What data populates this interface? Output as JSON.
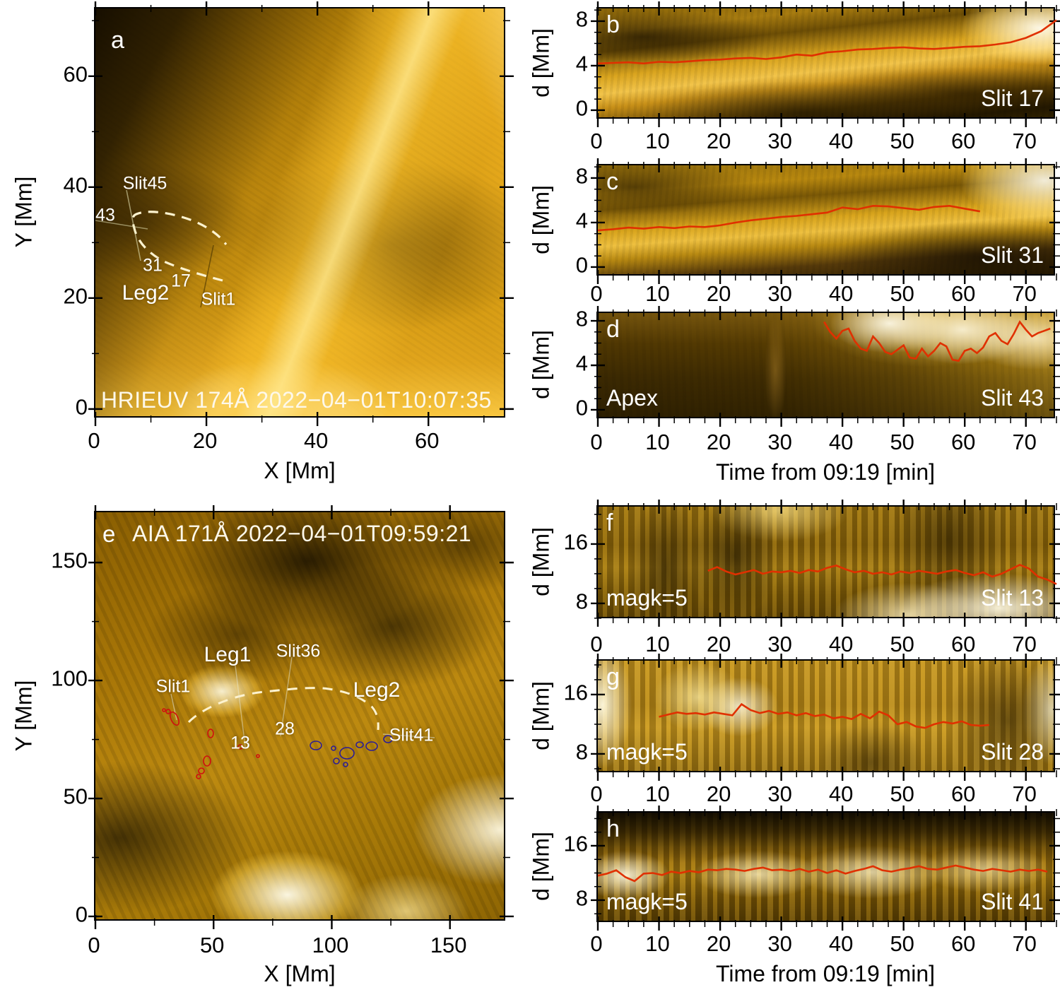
{
  "figure": {
    "curve_color": "#e03000",
    "dash_color": "#fdf3d0",
    "contour_red": "#cf1010",
    "contour_blue": "#2b1d96",
    "colormap": "solar-gold"
  },
  "panels": {
    "a": {
      "letter": "a",
      "overlay_title": "HRIEUV 174Å 2022−04−01T10:07:35",
      "xlabel": "X [Mm]",
      "ylabel": "Y [Mm]",
      "annotations": {
        "slit45": "Slit45",
        "s43": "43",
        "s31": "31",
        "s17": "17",
        "leg2": "Leg2",
        "slit1": "Slit1"
      }
    },
    "b": {
      "letter": "b",
      "slit_label": "Slit 17",
      "ylabel": "d [Mm]"
    },
    "c": {
      "letter": "c",
      "slit_label": "Slit 31",
      "ylabel": "d [Mm]"
    },
    "d": {
      "letter": "d",
      "slit_label": "Slit 43",
      "corner_label": "Apex",
      "ylabel": "d [Mm]",
      "xlabel": "Time from 09:19 [min]"
    },
    "e": {
      "letter": "e",
      "overlay_title": "AIA 171Å 2022−04−01T09:59:21",
      "xlabel": "X [Mm]",
      "ylabel": "Y [Mm]",
      "annotations": {
        "slit1": "Slit1",
        "leg1": "Leg1",
        "slit36": "Slit36",
        "s28": "28",
        "s13": "13",
        "leg2": "Leg2",
        "slit41": "Slit41"
      }
    },
    "f": {
      "letter": "f",
      "slit_label": "Slit 13",
      "corner_label": "magk=5",
      "ylabel": "d [Mm]"
    },
    "g": {
      "letter": "g",
      "slit_label": "Slit 28",
      "corner_label": "magk=5",
      "ylabel": "d [Mm]"
    },
    "h": {
      "letter": "h",
      "slit_label": "Slit 41",
      "corner_label": "magk=5",
      "ylabel": "d [Mm]",
      "xlabel": "Time from 09:19 [min]"
    }
  },
  "chart_data": {
    "type": "multi-panel",
    "description": "Solar EUV images (a,e) and time-distance maps (b,c,d,f,g,h) with tracked loop-position curves",
    "panels": {
      "a": {
        "type": "image",
        "xlim": [
          0,
          74.1
        ],
        "ylim": [
          -1.8,
          72.2
        ],
        "x_major": [
          0,
          20,
          40,
          60
        ],
        "x_labels": [
          "0",
          "20",
          "40",
          "60"
        ],
        "x_minor": 10,
        "y_major": [
          0,
          20,
          40,
          60
        ],
        "y_labels": [
          "0",
          "20",
          "40",
          "60"
        ],
        "y_minor": 10
      },
      "e": {
        "type": "image",
        "xlim": [
          0,
          174
        ],
        "ylim": [
          -2.4,
          171.3
        ],
        "x_major": [
          0,
          50,
          100,
          150
        ],
        "x_labels": [
          "0",
          "50",
          "100",
          "150"
        ],
        "x_minor": 25,
        "y_major": [
          0,
          50,
          100,
          150
        ],
        "y_labels": [
          "0",
          "50",
          "100",
          "150"
        ],
        "y_minor": 25
      },
      "b": {
        "type": "line",
        "xlim": [
          0,
          75
        ],
        "ylim": [
          -0.89,
          9.14
        ],
        "x_major": [
          0,
          10,
          20,
          30,
          40,
          50,
          60,
          70
        ],
        "x_labels": [
          "0",
          "10",
          "20",
          "30",
          "40",
          "50",
          "60",
          "70"
        ],
        "x_minor": 2.5,
        "y_major": [
          0,
          4,
          8
        ],
        "y_labels": [
          "0",
          "4",
          "8"
        ],
        "y_minor": 1,
        "series": {
          "name": "tracked distance Slit 17",
          "x": [
            0,
            2.5,
            5,
            7.5,
            10,
            12.5,
            15,
            17.5,
            20,
            22.5,
            25,
            27.5,
            30,
            32.5,
            35,
            37.5,
            40,
            42.5,
            45,
            47.5,
            50,
            52.5,
            55,
            57.5,
            60,
            62.5,
            65,
            67.5,
            70,
            72.5,
            75
          ],
          "y": [
            4.2,
            4.25,
            4.3,
            4.2,
            4.35,
            4.3,
            4.4,
            4.5,
            4.55,
            4.65,
            4.7,
            4.6,
            4.75,
            5.0,
            4.9,
            5.2,
            5.3,
            5.45,
            5.5,
            5.6,
            5.65,
            5.55,
            5.5,
            5.6,
            5.7,
            5.75,
            5.9,
            6.1,
            6.5,
            7.1,
            8.1
          ]
        }
      },
      "c": {
        "type": "line",
        "xlim": [
          0,
          75
        ],
        "ylim": [
          -0.89,
          9.14
        ],
        "x_major": [
          0,
          10,
          20,
          30,
          40,
          50,
          60,
          70
        ],
        "x_labels": [
          "0",
          "10",
          "20",
          "30",
          "40",
          "50",
          "60",
          "70"
        ],
        "x_minor": 2.5,
        "y_major": [
          0,
          4,
          8
        ],
        "y_labels": [
          "0",
          "4",
          "8"
        ],
        "y_minor": 1,
        "series": {
          "name": "tracked distance Slit 31",
          "x": [
            0,
            2.5,
            5,
            7.5,
            10,
            12.5,
            15,
            17.5,
            20,
            22.5,
            25,
            27.5,
            30,
            32.5,
            35,
            37.5,
            40,
            42.5,
            45,
            47.5,
            50,
            52.5,
            55,
            57.5,
            60,
            62.5
          ],
          "y": [
            3.3,
            3.4,
            3.55,
            3.45,
            3.6,
            3.5,
            3.65,
            3.6,
            3.75,
            4.0,
            4.2,
            4.35,
            4.5,
            4.6,
            4.75,
            4.9,
            5.35,
            5.2,
            5.5,
            5.45,
            5.3,
            5.15,
            5.4,
            5.5,
            5.25,
            5.0
          ]
        }
      },
      "d": {
        "type": "line",
        "xlim": [
          0,
          75
        ],
        "ylim": [
          -0.89,
          8.7
        ],
        "x_major": [
          0,
          10,
          20,
          30,
          40,
          50,
          60,
          70
        ],
        "x_labels": [
          "0",
          "10",
          "20",
          "30",
          "40",
          "50",
          "60",
          "70"
        ],
        "x_minor": 2.5,
        "y_major": [
          0,
          4,
          8
        ],
        "y_labels": [
          "0",
          "4",
          "8"
        ],
        "y_minor": 1,
        "series": {
          "name": "tracked distance Slit 43 (apex)",
          "x": [
            37,
            38,
            39,
            40,
            41,
            42,
            43,
            44,
            45,
            46,
            47,
            48,
            49,
            50,
            51,
            52,
            53,
            54,
            55,
            56,
            57,
            58,
            59,
            60,
            61,
            62,
            63,
            64,
            65,
            66,
            67,
            68,
            69,
            70,
            71,
            72,
            73,
            74
          ],
          "y": [
            7.9,
            7.0,
            6.4,
            7.1,
            7.3,
            6.2,
            5.5,
            5.3,
            6.6,
            6.0,
            5.2,
            5.0,
            5.4,
            5.8,
            4.7,
            4.6,
            5.5,
            4.8,
            5.3,
            6.0,
            5.7,
            4.5,
            4.4,
            5.3,
            5.5,
            5.1,
            5.6,
            6.6,
            6.9,
            6.2,
            5.9,
            6.8,
            7.9,
            7.2,
            6.6,
            6.9,
            7.1,
            7.3
          ]
        }
      },
      "f": {
        "type": "line",
        "xlim": [
          0,
          75
        ],
        "ylim": [
          5.8,
          21.05
        ],
        "x_major": [
          0,
          10,
          20,
          30,
          40,
          50,
          60,
          70
        ],
        "x_labels": [
          "0",
          "10",
          "20",
          "30",
          "40",
          "50",
          "60",
          "70"
        ],
        "x_minor": 2.5,
        "y_major": [
          8,
          16
        ],
        "y_labels": [
          "8",
          "16"
        ],
        "y_minor": 2,
        "series": {
          "name": "tracked distance Slit 13",
          "x": [
            18,
            19.5,
            21,
            22.5,
            24,
            25.5,
            27,
            28.5,
            30,
            31.5,
            33,
            34.5,
            36,
            37.5,
            39,
            40.5,
            42,
            43.5,
            45,
            46.5,
            48,
            49.5,
            51,
            52.5,
            54,
            55.5,
            57,
            58.5,
            60,
            61.5,
            63,
            64.5,
            66,
            67.5,
            69,
            70.5,
            72,
            73.5,
            75
          ],
          "y": [
            12.4,
            12.9,
            12.3,
            11.9,
            12.2,
            12.5,
            12.0,
            12.3,
            12.2,
            12.4,
            12.1,
            12.5,
            12.3,
            12.8,
            13.1,
            12.6,
            12.2,
            12.4,
            12.0,
            12.2,
            11.9,
            12.3,
            12.1,
            12.4,
            12.2,
            12.0,
            12.3,
            12.5,
            12.1,
            11.8,
            12.2,
            11.6,
            12.0,
            12.6,
            13.2,
            12.7,
            11.6,
            11.2,
            10.6
          ]
        }
      },
      "g": {
        "type": "line",
        "xlim": [
          0,
          75
        ],
        "ylim": [
          5.33,
          20.57
        ],
        "x_major": [
          0,
          10,
          20,
          30,
          40,
          50,
          60,
          70
        ],
        "x_labels": [
          "0",
          "10",
          "20",
          "30",
          "40",
          "50",
          "60",
          "70"
        ],
        "x_minor": 2.5,
        "y_major": [
          8,
          16
        ],
        "y_labels": [
          "8",
          "16"
        ],
        "y_minor": 2,
        "series": {
          "name": "tracked distance Slit 28",
          "x": [
            10,
            11.5,
            13,
            14.5,
            16,
            17.5,
            19,
            20.5,
            22,
            23.5,
            25,
            26.5,
            28,
            29.5,
            31,
            32.5,
            34,
            35.5,
            37,
            38.5,
            40,
            41.5,
            43,
            44.5,
            46,
            47.5,
            49,
            50.5,
            52,
            53.5,
            55,
            56.5,
            58,
            59.5,
            61,
            62.5,
            64
          ],
          "y": [
            13.0,
            13.3,
            13.6,
            13.4,
            13.5,
            13.3,
            13.6,
            13.4,
            13.2,
            14.7,
            13.9,
            13.5,
            13.8,
            13.4,
            13.6,
            13.2,
            13.5,
            13.1,
            13.3,
            12.8,
            13.0,
            12.7,
            13.4,
            12.8,
            13.7,
            13.2,
            12.0,
            12.3,
            11.7,
            11.5,
            12.0,
            12.3,
            12.1,
            12.4,
            11.9,
            11.8,
            11.9
          ]
        }
      },
      "h": {
        "type": "line",
        "xlim": [
          0,
          75
        ],
        "ylim": [
          4.57,
          20.88
        ],
        "x_major": [
          0,
          10,
          20,
          30,
          40,
          50,
          60,
          70
        ],
        "x_labels": [
          "0",
          "10",
          "20",
          "30",
          "40",
          "50",
          "60",
          "70"
        ],
        "x_minor": 2.5,
        "y_major": [
          8,
          16
        ],
        "y_labels": [
          "8",
          "16"
        ],
        "y_minor": 2,
        "series": {
          "name": "tracked distance Slit 41",
          "x": [
            0,
            1.5,
            3,
            4.5,
            6,
            7.5,
            9,
            10.5,
            12,
            13.5,
            15,
            16.5,
            18,
            19.5,
            21,
            22.5,
            24,
            25.5,
            27,
            28.5,
            30,
            31.5,
            33,
            34.5,
            36,
            37.5,
            39,
            40.5,
            42,
            43.5,
            45,
            46.5,
            48,
            49.5,
            51,
            52.5,
            54,
            55.5,
            57,
            58.5,
            60,
            61.5,
            63,
            64.5,
            66,
            67.5,
            69,
            70.5,
            72,
            73.5
          ],
          "y": [
            11.6,
            11.9,
            12.4,
            11.4,
            10.8,
            11.9,
            12.0,
            11.7,
            12.2,
            12.0,
            12.3,
            12.1,
            12.5,
            12.4,
            12.6,
            12.5,
            12.3,
            12.6,
            12.8,
            12.4,
            12.5,
            12.3,
            12.6,
            12.2,
            12.5,
            12.0,
            12.4,
            11.9,
            12.3,
            12.6,
            13.0,
            12.4,
            12.2,
            12.5,
            12.7,
            13.0,
            12.6,
            12.5,
            12.8,
            13.1,
            12.8,
            12.5,
            12.3,
            12.6,
            12.4,
            12.2,
            12.5,
            12.3,
            12.5,
            12.2
          ]
        }
      }
    }
  }
}
